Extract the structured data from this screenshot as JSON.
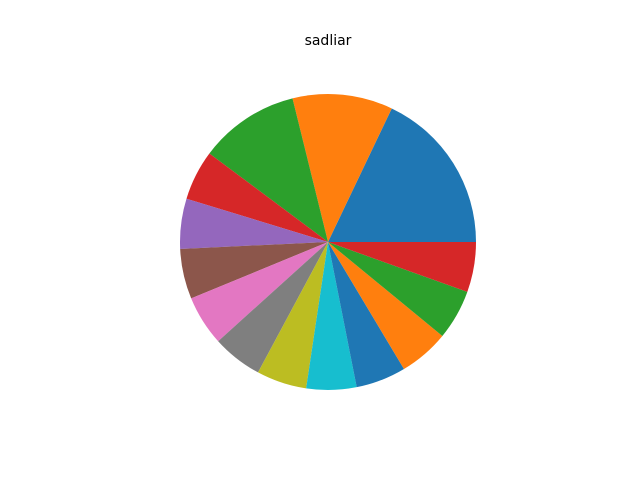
{
  "chart_data": {
    "type": "pie",
    "title": "sadliar",
    "start_angle_deg": 0,
    "direction": "counterclockwise",
    "values": [
      18,
      11,
      11,
      5.5,
      5.5,
      5.5,
      5.5,
      5.5,
      5.5,
      5.5,
      5.5,
      5.5,
      5.5,
      5.5
    ],
    "colors": [
      "#1f77b4",
      "#ff7f0e",
      "#2ca02c",
      "#d62728",
      "#9467bd",
      "#8c564b",
      "#e377c2",
      "#7f7f7f",
      "#bcbd22",
      "#17becf",
      "#1f77b4",
      "#ff7f0e",
      "#2ca02c",
      "#d62728"
    ]
  }
}
